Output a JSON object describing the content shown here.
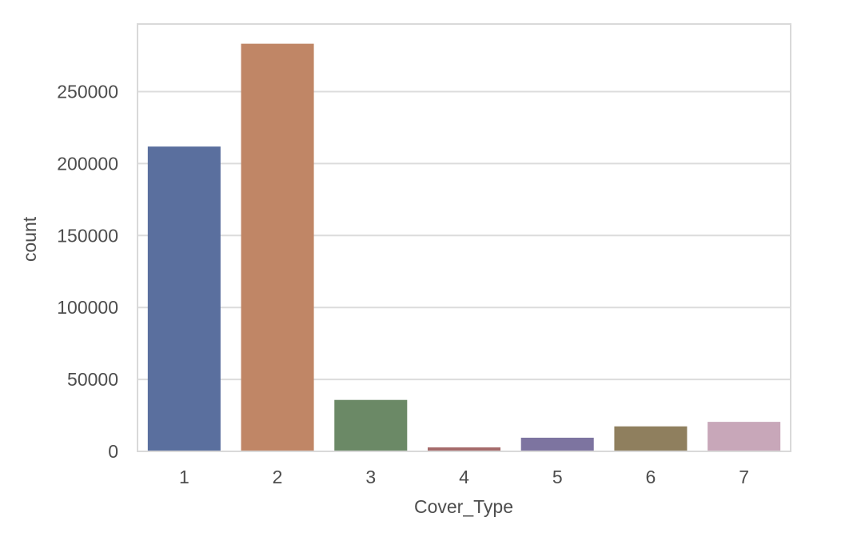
{
  "chart_data": {
    "type": "bar",
    "title": "",
    "xlabel": "Cover_Type",
    "ylabel": "count",
    "categories": [
      "1",
      "2",
      "3",
      "4",
      "5",
      "6",
      "7"
    ],
    "values": [
      211840,
      283301,
      35754,
      2747,
      9493,
      17367,
      20510
    ],
    "colors": [
      "#5a6f9e",
      "#c08666",
      "#6b8966",
      "#a56a6a",
      "#7d74a0",
      "#8f7f5e",
      "#c8a7b9"
    ],
    "ylim": [
      0,
      297000
    ],
    "yticks": [
      {
        "value": 0,
        "label": "0"
      },
      {
        "value": 50000,
        "label": "50000"
      },
      {
        "value": 100000,
        "label": "100000"
      },
      {
        "value": 150000,
        "label": "150000"
      },
      {
        "value": 200000,
        "label": "200000"
      },
      {
        "value": 250000,
        "label": "250000"
      }
    ],
    "grid": true,
    "grid_axis": "y",
    "grid_color": "#dcdcdc",
    "frame_color": "#d9d9d9",
    "text_color": "#4d4d4d"
  }
}
